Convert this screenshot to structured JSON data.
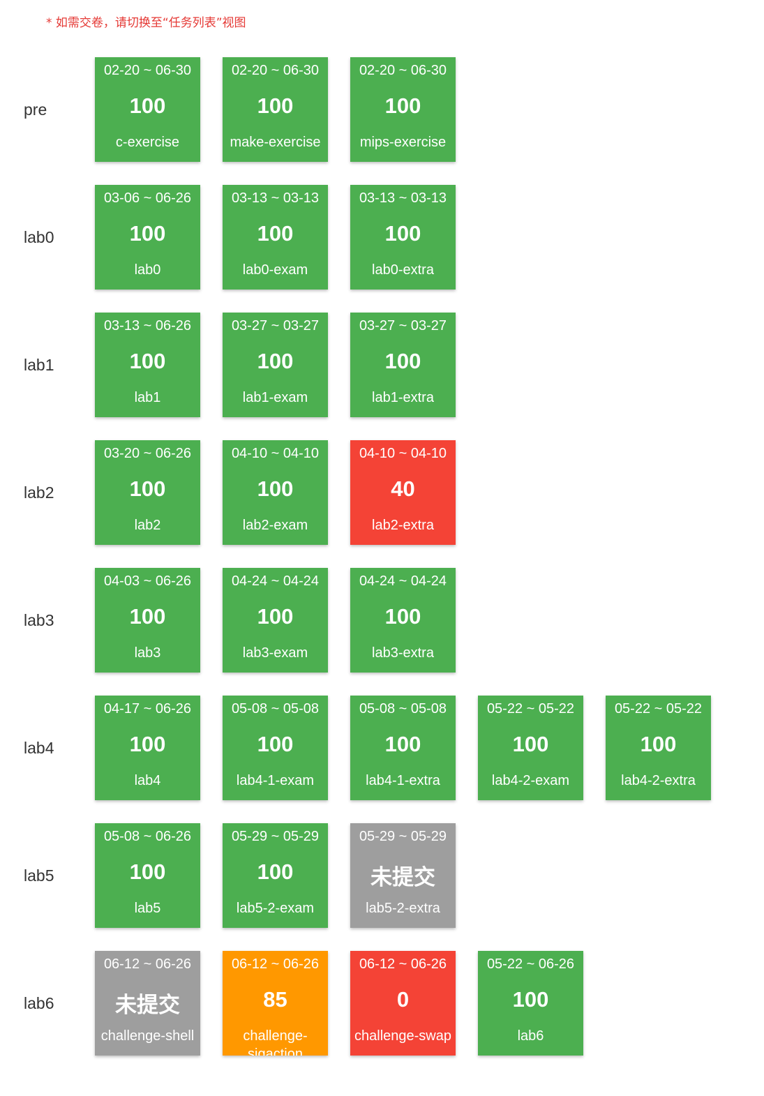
{
  "notice": "* 如需交卷，请切换至“任务列表”视图",
  "colors": {
    "pass": "#4caf50",
    "fail": "#f44336",
    "not_submitted": "#9e9e9e",
    "partial": "#ff9800",
    "notice": "#e53935"
  },
  "rows": [
    {
      "label": "pre",
      "cards": [
        {
          "date": "02-20 ~ 06-30",
          "score": "100",
          "name": "c-exercise",
          "status": "green"
        },
        {
          "date": "02-20 ~ 06-30",
          "score": "100",
          "name": "make-exercise",
          "status": "green"
        },
        {
          "date": "02-20 ~ 06-30",
          "score": "100",
          "name": "mips-exercise",
          "status": "green"
        }
      ]
    },
    {
      "label": "lab0",
      "cards": [
        {
          "date": "03-06 ~ 06-26",
          "score": "100",
          "name": "lab0",
          "status": "green"
        },
        {
          "date": "03-13 ~ 03-13",
          "score": "100",
          "name": "lab0-exam",
          "status": "green"
        },
        {
          "date": "03-13 ~ 03-13",
          "score": "100",
          "name": "lab0-extra",
          "status": "green"
        }
      ]
    },
    {
      "label": "lab1",
      "cards": [
        {
          "date": "03-13 ~ 06-26",
          "score": "100",
          "name": "lab1",
          "status": "green"
        },
        {
          "date": "03-27 ~ 03-27",
          "score": "100",
          "name": "lab1-exam",
          "status": "green"
        },
        {
          "date": "03-27 ~ 03-27",
          "score": "100",
          "name": "lab1-extra",
          "status": "green"
        }
      ]
    },
    {
      "label": "lab2",
      "cards": [
        {
          "date": "03-20 ~ 06-26",
          "score": "100",
          "name": "lab2",
          "status": "green"
        },
        {
          "date": "04-10 ~ 04-10",
          "score": "100",
          "name": "lab2-exam",
          "status": "green"
        },
        {
          "date": "04-10 ~ 04-10",
          "score": "40",
          "name": "lab2-extra",
          "status": "red"
        }
      ]
    },
    {
      "label": "lab3",
      "cards": [
        {
          "date": "04-03 ~ 06-26",
          "score": "100",
          "name": "lab3",
          "status": "green"
        },
        {
          "date": "04-24 ~ 04-24",
          "score": "100",
          "name": "lab3-exam",
          "status": "green"
        },
        {
          "date": "04-24 ~ 04-24",
          "score": "100",
          "name": "lab3-extra",
          "status": "green"
        }
      ]
    },
    {
      "label": "lab4",
      "cards": [
        {
          "date": "04-17 ~ 06-26",
          "score": "100",
          "name": "lab4",
          "status": "green"
        },
        {
          "date": "05-08 ~ 05-08",
          "score": "100",
          "name": "lab4-1-exam",
          "status": "green"
        },
        {
          "date": "05-08 ~ 05-08",
          "score": "100",
          "name": "lab4-1-extra",
          "status": "green"
        },
        {
          "date": "05-22 ~ 05-22",
          "score": "100",
          "name": "lab4-2-exam",
          "status": "green"
        },
        {
          "date": "05-22 ~ 05-22",
          "score": "100",
          "name": "lab4-2-extra",
          "status": "green"
        }
      ]
    },
    {
      "label": "lab5",
      "cards": [
        {
          "date": "05-08 ~ 06-26",
          "score": "100",
          "name": "lab5",
          "status": "green"
        },
        {
          "date": "05-29 ~ 05-29",
          "score": "100",
          "name": "lab5-2-exam",
          "status": "green"
        },
        {
          "date": "05-29 ~ 05-29",
          "score": "未提交",
          "name": "lab5-2-extra",
          "status": "gray"
        }
      ]
    },
    {
      "label": "lab6",
      "cards": [
        {
          "date": "06-12 ~ 06-26",
          "score": "未提交",
          "name": "challenge-shell",
          "status": "gray"
        },
        {
          "date": "06-12 ~ 06-26",
          "score": "85",
          "name": "challenge-sigaction",
          "status": "orange"
        },
        {
          "date": "06-12 ~ 06-26",
          "score": "0",
          "name": "challenge-swap",
          "status": "red"
        },
        {
          "date": "05-22 ~ 06-26",
          "score": "100",
          "name": "lab6",
          "status": "green"
        }
      ]
    }
  ]
}
